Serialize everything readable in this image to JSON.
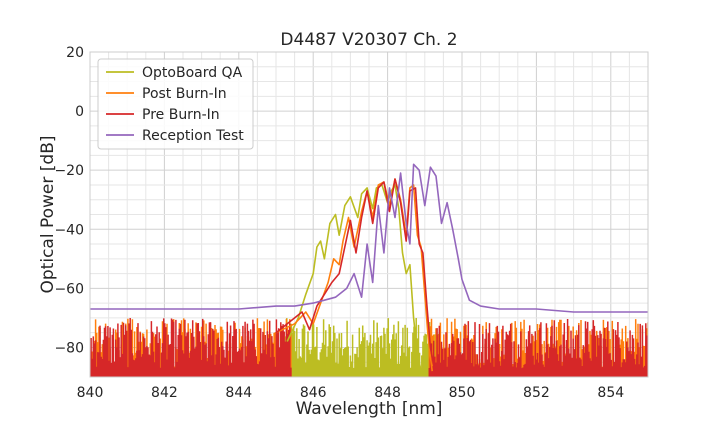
{
  "chart_data": {
    "type": "line",
    "title": "D4487 V20307 Ch. 2",
    "xlabel": "Wavelength [nm]",
    "ylabel": "Optical Power [dB]",
    "xlim": [
      840,
      855
    ],
    "ylim": [
      -90,
      20
    ],
    "xticks": [
      840,
      842,
      844,
      846,
      848,
      850,
      852,
      854
    ],
    "yticks": [
      -80,
      -60,
      -40,
      -20,
      0,
      20
    ],
    "ytick_labels": [
      "−80",
      "−60",
      "−40",
      "−20",
      "0",
      "20"
    ],
    "grid": true,
    "legend_position": "top-left",
    "series": [
      {
        "name": "OptoBoard QA",
        "color": "#bcbd22",
        "noise_floor": true,
        "noise_range": [
          845.2,
          849.4
        ],
        "x": [
          845.3,
          845.6,
          845.8,
          846.0,
          846.1,
          846.2,
          846.3,
          846.45,
          846.6,
          846.7,
          846.85,
          847.0,
          847.2,
          847.3,
          847.45,
          847.6,
          847.7,
          847.85,
          848.0,
          848.1,
          848.2,
          848.3,
          848.4,
          848.5,
          848.6,
          848.7,
          848.8,
          848.9,
          849.0
        ],
        "values": [
          -78,
          -70,
          -62,
          -55,
          -46,
          -44,
          -50,
          -38,
          -35,
          -42,
          -32,
          -29,
          -36,
          -28,
          -26,
          -33,
          -26,
          -25,
          -31,
          -27,
          -25,
          -33,
          -48,
          -55,
          -52,
          -70,
          -82,
          -88,
          -90
        ]
      },
      {
        "name": "Post Burn-In",
        "color": "#ff7f0e",
        "noise_floor": true,
        "noise_range": [
          840.0,
          855.0
        ],
        "x": [
          845.0,
          845.5,
          845.8,
          846.0,
          846.2,
          846.4,
          846.55,
          846.7,
          846.8,
          846.95,
          847.1,
          847.3,
          847.45,
          847.6,
          847.75,
          847.9,
          848.05,
          848.2,
          848.35,
          848.5,
          848.6,
          848.7,
          848.8,
          848.9,
          849.0,
          849.1,
          849.2
        ],
        "values": [
          -75,
          -72,
          -68,
          -72,
          -65,
          -58,
          -50,
          -52,
          -44,
          -36,
          -46,
          -34,
          -27,
          -36,
          -25,
          -24,
          -32,
          -23,
          -30,
          -42,
          -26,
          -25,
          -42,
          -46,
          -62,
          -78,
          -88
        ]
      },
      {
        "name": "Pre Burn-In",
        "color": "#d62728",
        "noise_floor": true,
        "noise_range": [
          840.0,
          855.0
        ],
        "x": [
          845.0,
          845.4,
          845.7,
          845.9,
          846.1,
          846.3,
          846.5,
          846.7,
          846.85,
          847.0,
          847.15,
          847.3,
          847.45,
          847.6,
          847.75,
          847.9,
          848.05,
          848.2,
          848.35,
          848.5,
          848.6,
          848.75,
          848.85,
          848.95,
          849.05,
          849.15,
          849.3
        ],
        "values": [
          -75,
          -71,
          -68,
          -74,
          -66,
          -62,
          -58,
          -55,
          -46,
          -37,
          -48,
          -36,
          -27,
          -38,
          -26,
          -24,
          -34,
          -23,
          -31,
          -44,
          -27,
          -26,
          -45,
          -48,
          -65,
          -80,
          -90
        ]
      },
      {
        "name": "Reception Test",
        "color": "#9467bd",
        "noise_floor": false,
        "x": [
          840.0,
          841.0,
          842.0,
          843.0,
          844.0,
          845.0,
          845.5,
          846.0,
          846.3,
          846.6,
          846.9,
          847.1,
          847.3,
          847.45,
          847.6,
          847.75,
          847.9,
          848.05,
          848.2,
          848.35,
          848.5,
          848.6,
          848.7,
          848.85,
          849.0,
          849.15,
          849.3,
          849.45,
          849.6,
          849.75,
          849.9,
          850.0,
          850.2,
          850.5,
          851.0,
          852.0,
          853.0,
          854.0,
          855.0
        ],
        "values": [
          -67,
          -67,
          -67,
          -67,
          -67,
          -66,
          -66,
          -65,
          -64,
          -63,
          -60,
          -55,
          -63,
          -45,
          -58,
          -32,
          -48,
          -26,
          -36,
          -21,
          -38,
          -45,
          -18,
          -20,
          -32,
          -19,
          -22,
          -38,
          -31,
          -40,
          -50,
          -57,
          -64,
          -66,
          -67,
          -67,
          -68,
          -68,
          -68
        ]
      }
    ]
  }
}
